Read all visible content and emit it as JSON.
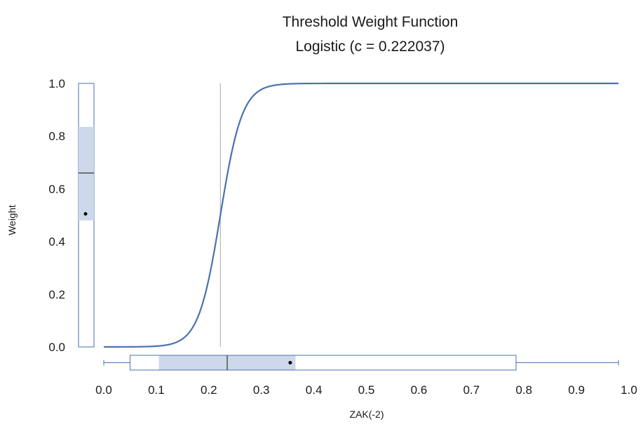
{
  "chart_data": {
    "type": "line",
    "title": "Threshold Weight Function",
    "subtitle": "Logistic (c = 0.222037)",
    "xlabel": "ZAK(-2)",
    "ylabel": "Weight",
    "xlim": [
      0.0,
      1.0
    ],
    "ylim": [
      0.0,
      1.0
    ],
    "x_ticks": [
      "0.0",
      "0.1",
      "0.2",
      "0.3",
      "0.4",
      "0.5",
      "0.6",
      "0.7",
      "0.8",
      "0.9",
      "1.0"
    ],
    "y_ticks": [
      "0.0",
      "0.2",
      "0.4",
      "0.6",
      "0.8",
      "1.0"
    ],
    "grid": false,
    "legend": "none",
    "series": [
      {
        "x": [
          0.0,
          0.1,
          0.15,
          0.17,
          0.19,
          0.2,
          0.21,
          0.222,
          0.23,
          0.24,
          0.25,
          0.27,
          0.3,
          0.35,
          0.4,
          0.5,
          0.6,
          0.7,
          0.8,
          0.9,
          0.98
        ],
        "y": [
          0.0,
          0.0,
          0.01,
          0.03,
          0.12,
          0.22,
          0.35,
          0.5,
          0.62,
          0.76,
          0.85,
          0.95,
          0.99,
          1.0,
          1.0,
          1.0,
          1.0,
          1.0,
          1.0,
          1.0,
          1.0
        ]
      }
    ],
    "threshold_line": {
      "x": 0.222
    },
    "x_boxplot": {
      "min": 0.0,
      "q1": 0.105,
      "median": 0.235,
      "mean": 0.355,
      "q3": 0.365,
      "whisker_low": 0.05,
      "whisker_high": 0.785,
      "max": 0.98
    },
    "y_boxplot": {
      "min": 0.0,
      "q1": 0.48,
      "median": 0.66,
      "mean": 0.505,
      "q3": 0.835,
      "max": 1.0
    },
    "colors": {
      "line": "#4a72b0",
      "box_fill": "#cdd8ea",
      "box_stroke": "#4a72b0",
      "threshold": "#a6a6a6"
    }
  }
}
